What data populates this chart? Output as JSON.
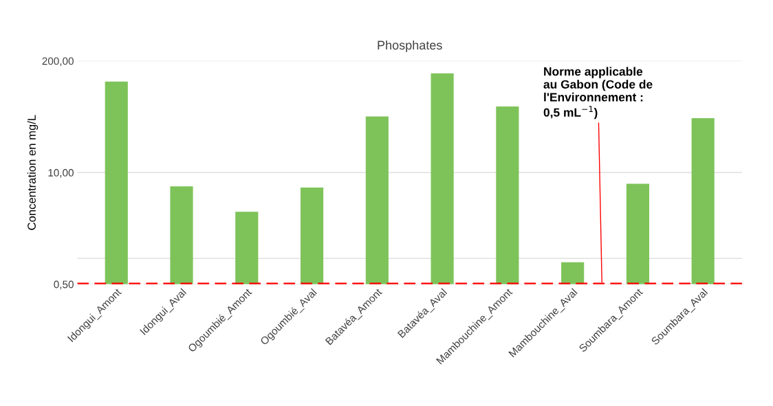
{
  "chart_data": {
    "type": "bar",
    "title": "Phosphates",
    "ylabel": "Concentration en mg/L",
    "categories": [
      "Idongui_Amont",
      "Idongui_Aval",
      "Ogoumbié_Amont",
      "Ogoumbié_Aval",
      "Batavéa_Amont",
      "Batavéa_Aval",
      "Mambouchine_Amont",
      "Mambouchine_Aval",
      "Soumbara_Amont",
      "Soumbara_Aval"
    ],
    "values": [
      115,
      6.9,
      3.5,
      6.7,
      45,
      143,
      59,
      0.9,
      7.4,
      43
    ],
    "color": "#7ec35a",
    "log": "y",
    "ylim": [
      0.5,
      200
    ],
    "yticks": [
      {
        "value": 0.5,
        "label": "0,50"
      },
      {
        "value": 1,
        "label": null
      },
      {
        "value": 10,
        "label": "10,00"
      },
      {
        "value": 200,
        "label": "200,00"
      }
    ],
    "grid": "y",
    "ref_lines": [
      {
        "axis": "y",
        "value": 0.5,
        "label": "Norme applicable\nau Gabon (Code de\nl'Environnement :\n0,5 mL$^{−1}$)",
        "color": "#ff0000",
        "line_style": "dashed"
      }
    ]
  }
}
